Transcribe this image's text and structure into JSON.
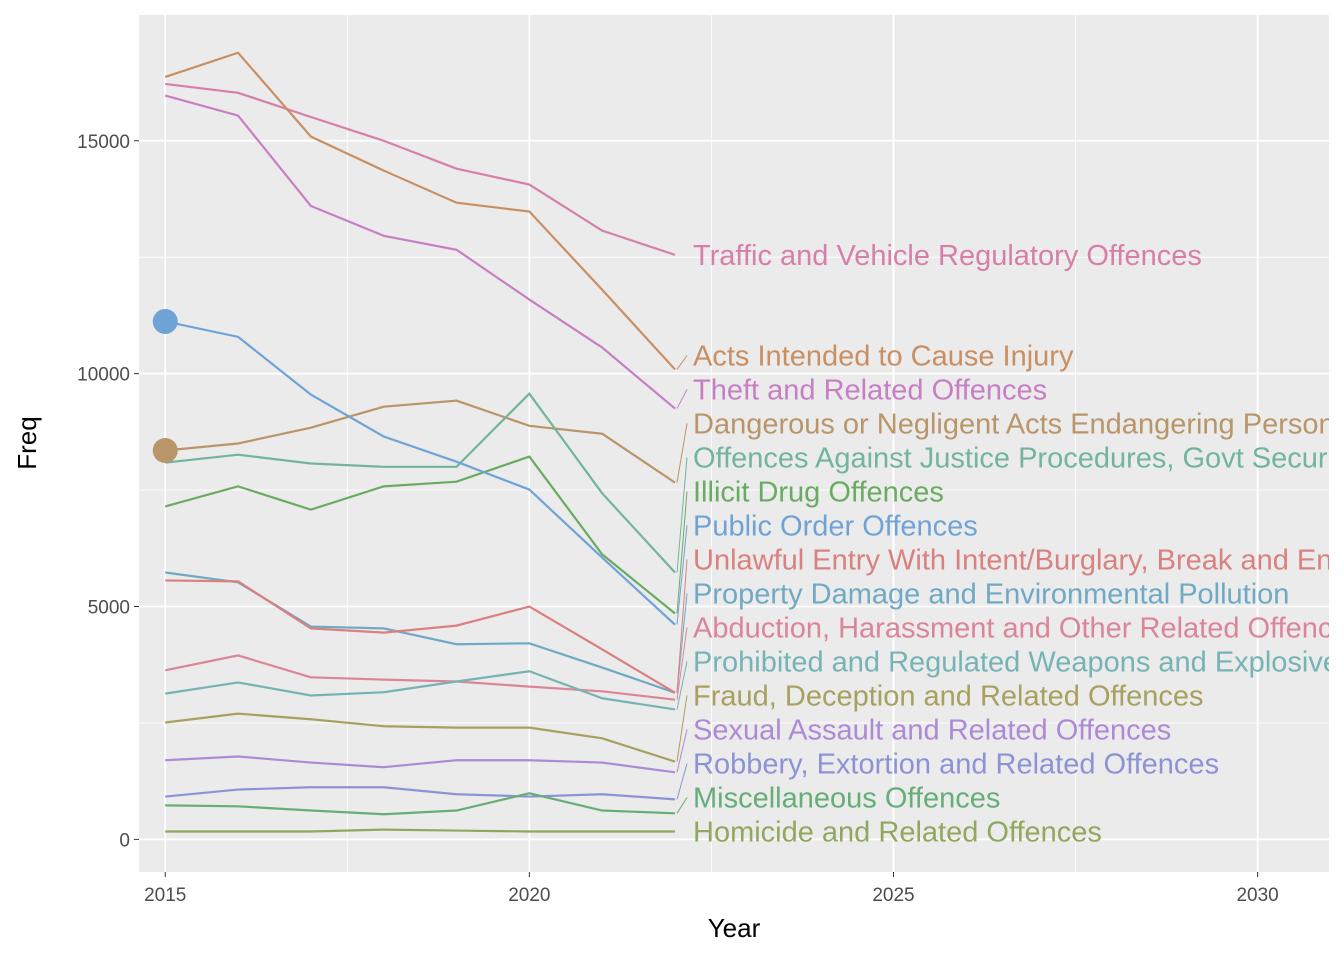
{
  "chart_data": {
    "type": "line",
    "xlabel": "Year",
    "ylabel": "Freq",
    "xlim": [
      2014.64,
      2030.98
    ],
    "ylim": [
      -700,
      17700
    ],
    "x_ticks": [
      "2015",
      "2020",
      "2025",
      "2030"
    ],
    "y_ticks": [
      "0",
      "5000",
      "10000",
      "15000"
    ],
    "grid": true,
    "legend": "none (labels at line ends)",
    "x": [
      2015,
      2016,
      2017,
      2018,
      2019,
      2020,
      2021,
      2022
    ],
    "series": [
      {
        "name": "Traffic and Vehicle Regulatory Offences",
        "color": "#d67fa8",
        "values": [
          16220,
          16030,
          15510,
          15000,
          14400,
          14060,
          13070,
          12550
        ]
      },
      {
        "name": "Acts Intended to Cause Injury",
        "color": "#c98f62",
        "values": [
          16370,
          16890,
          15090,
          14360,
          13670,
          13480,
          11800,
          10090
        ]
      },
      {
        "name": "Theft and Related Offences",
        "color": "#c77fc4",
        "values": [
          15970,
          15540,
          13600,
          12960,
          12660,
          11590,
          10560,
          9250
        ]
      },
      {
        "name": "Dangerous or Negligent Acts Endangering Persons",
        "color": "#b9966a",
        "values": [
          8350,
          8500,
          8840,
          9290,
          9420,
          8880,
          8710,
          7660
        ]
      },
      {
        "name": "Offences Against Justice Procedures, Govt Security and Govt Operations",
        "color": "#72b59c",
        "values": [
          8090,
          8260,
          8070,
          8000,
          8000,
          9570,
          7430,
          5730
        ]
      },
      {
        "name": "Illicit Drug Offences",
        "color": "#6aab62",
        "values": [
          7150,
          7580,
          7080,
          7580,
          7680,
          8220,
          6120,
          4850
        ]
      },
      {
        "name": "Public Order Offences",
        "color": "#6fa3d6",
        "values": [
          11120,
          10790,
          9550,
          8650,
          8110,
          7510,
          6050,
          4610
        ]
      },
      {
        "name": "Abduction, Harassment and Other Related Offences Against a Person",
        "color": "#db8598",
        "values": [
          3630,
          3950,
          3480,
          3430,
          3390,
          3280,
          3180,
          3000
        ]
      },
      {
        "name": "Property Damage and Environmental Pollution",
        "color": "#6fa9c4",
        "values": [
          5730,
          5520,
          4570,
          4530,
          4190,
          4210,
          3690,
          3150
        ]
      },
      {
        "name": "Unlawful Entry With Intent/Burglary, Break and Enter",
        "color": "#d98080",
        "values": [
          5560,
          5540,
          4530,
          4440,
          4590,
          5000,
          4080,
          3150
        ]
      },
      {
        "name": "Prohibited and Regulated Weapons and Explosives Offences",
        "color": "#76b3b5",
        "values": [
          3130,
          3370,
          3090,
          3160,
          3390,
          3610,
          3030,
          2790
        ]
      },
      {
        "name": "Fraud, Deception and Related Offences",
        "color": "#a8a05e",
        "values": [
          2510,
          2700,
          2580,
          2430,
          2400,
          2400,
          2170,
          1670
        ]
      },
      {
        "name": "Sexual Assault and Related Offences",
        "color": "#ad8ad6",
        "values": [
          1700,
          1780,
          1650,
          1550,
          1700,
          1700,
          1650,
          1440
        ]
      },
      {
        "name": "Robbery, Extortion and Related Offences",
        "color": "#8b93d6",
        "values": [
          920,
          1070,
          1120,
          1120,
          970,
          920,
          970,
          860
        ]
      },
      {
        "name": "Miscellaneous Offences",
        "color": "#66ad78",
        "values": [
          730,
          710,
          620,
          540,
          620,
          990,
          620,
          560
        ]
      },
      {
        "name": "Homicide and Related Offences",
        "color": "#8fa85e",
        "values": [
          170,
          170,
          170,
          210,
          190,
          170,
          170,
          170
        ]
      }
    ],
    "highlighted_points": [
      {
        "series": "Public Order Offences",
        "x": 2015,
        "y": 11120,
        "color": "#6fa3d6"
      },
      {
        "series": "Dangerous or Negligent Acts Endangering Persons",
        "x": 2015,
        "y": 8350,
        "color": "#b9966a"
      }
    ]
  }
}
